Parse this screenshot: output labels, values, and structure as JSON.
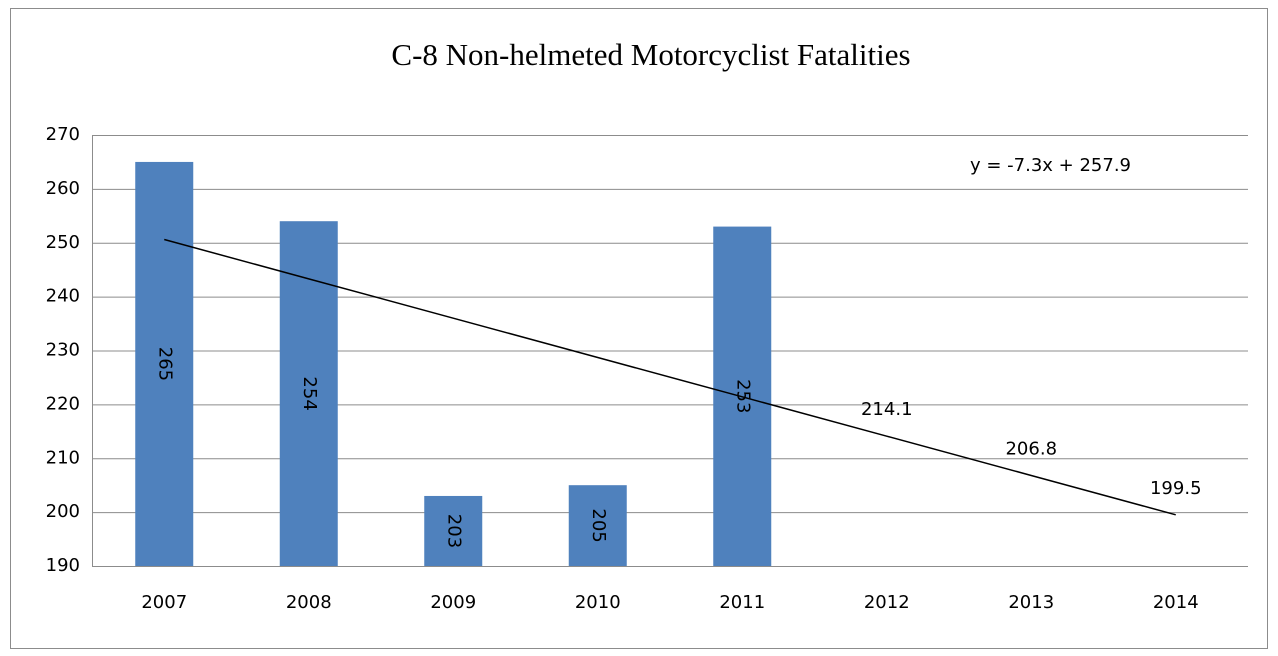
{
  "chart_data": {
    "type": "bar",
    "title": "C-8 Non-helmeted  Motorcyclist Fatalities",
    "categories": [
      "2007",
      "2008",
      "2009",
      "2010",
      "2011",
      "2012",
      "2013",
      "2014"
    ],
    "values": [
      265,
      254,
      203,
      205,
      253,
      null,
      null,
      null
    ],
    "color": "#4f81bd",
    "trendline": {
      "color": "#000000",
      "equation": "y = -7.3x + 257.9",
      "values": [
        250.6,
        243.3,
        236.0,
        228.7,
        221.4,
        214.1,
        206.8,
        199.5
      ],
      "value_labels": [
        null,
        null,
        null,
        null,
        null,
        "214.1",
        "206.8",
        "199.5"
      ]
    },
    "ylim": [
      190,
      270
    ],
    "yticks": [
      190,
      200,
      210,
      220,
      230,
      240,
      250,
      260,
      270
    ],
    "grid": true
  }
}
